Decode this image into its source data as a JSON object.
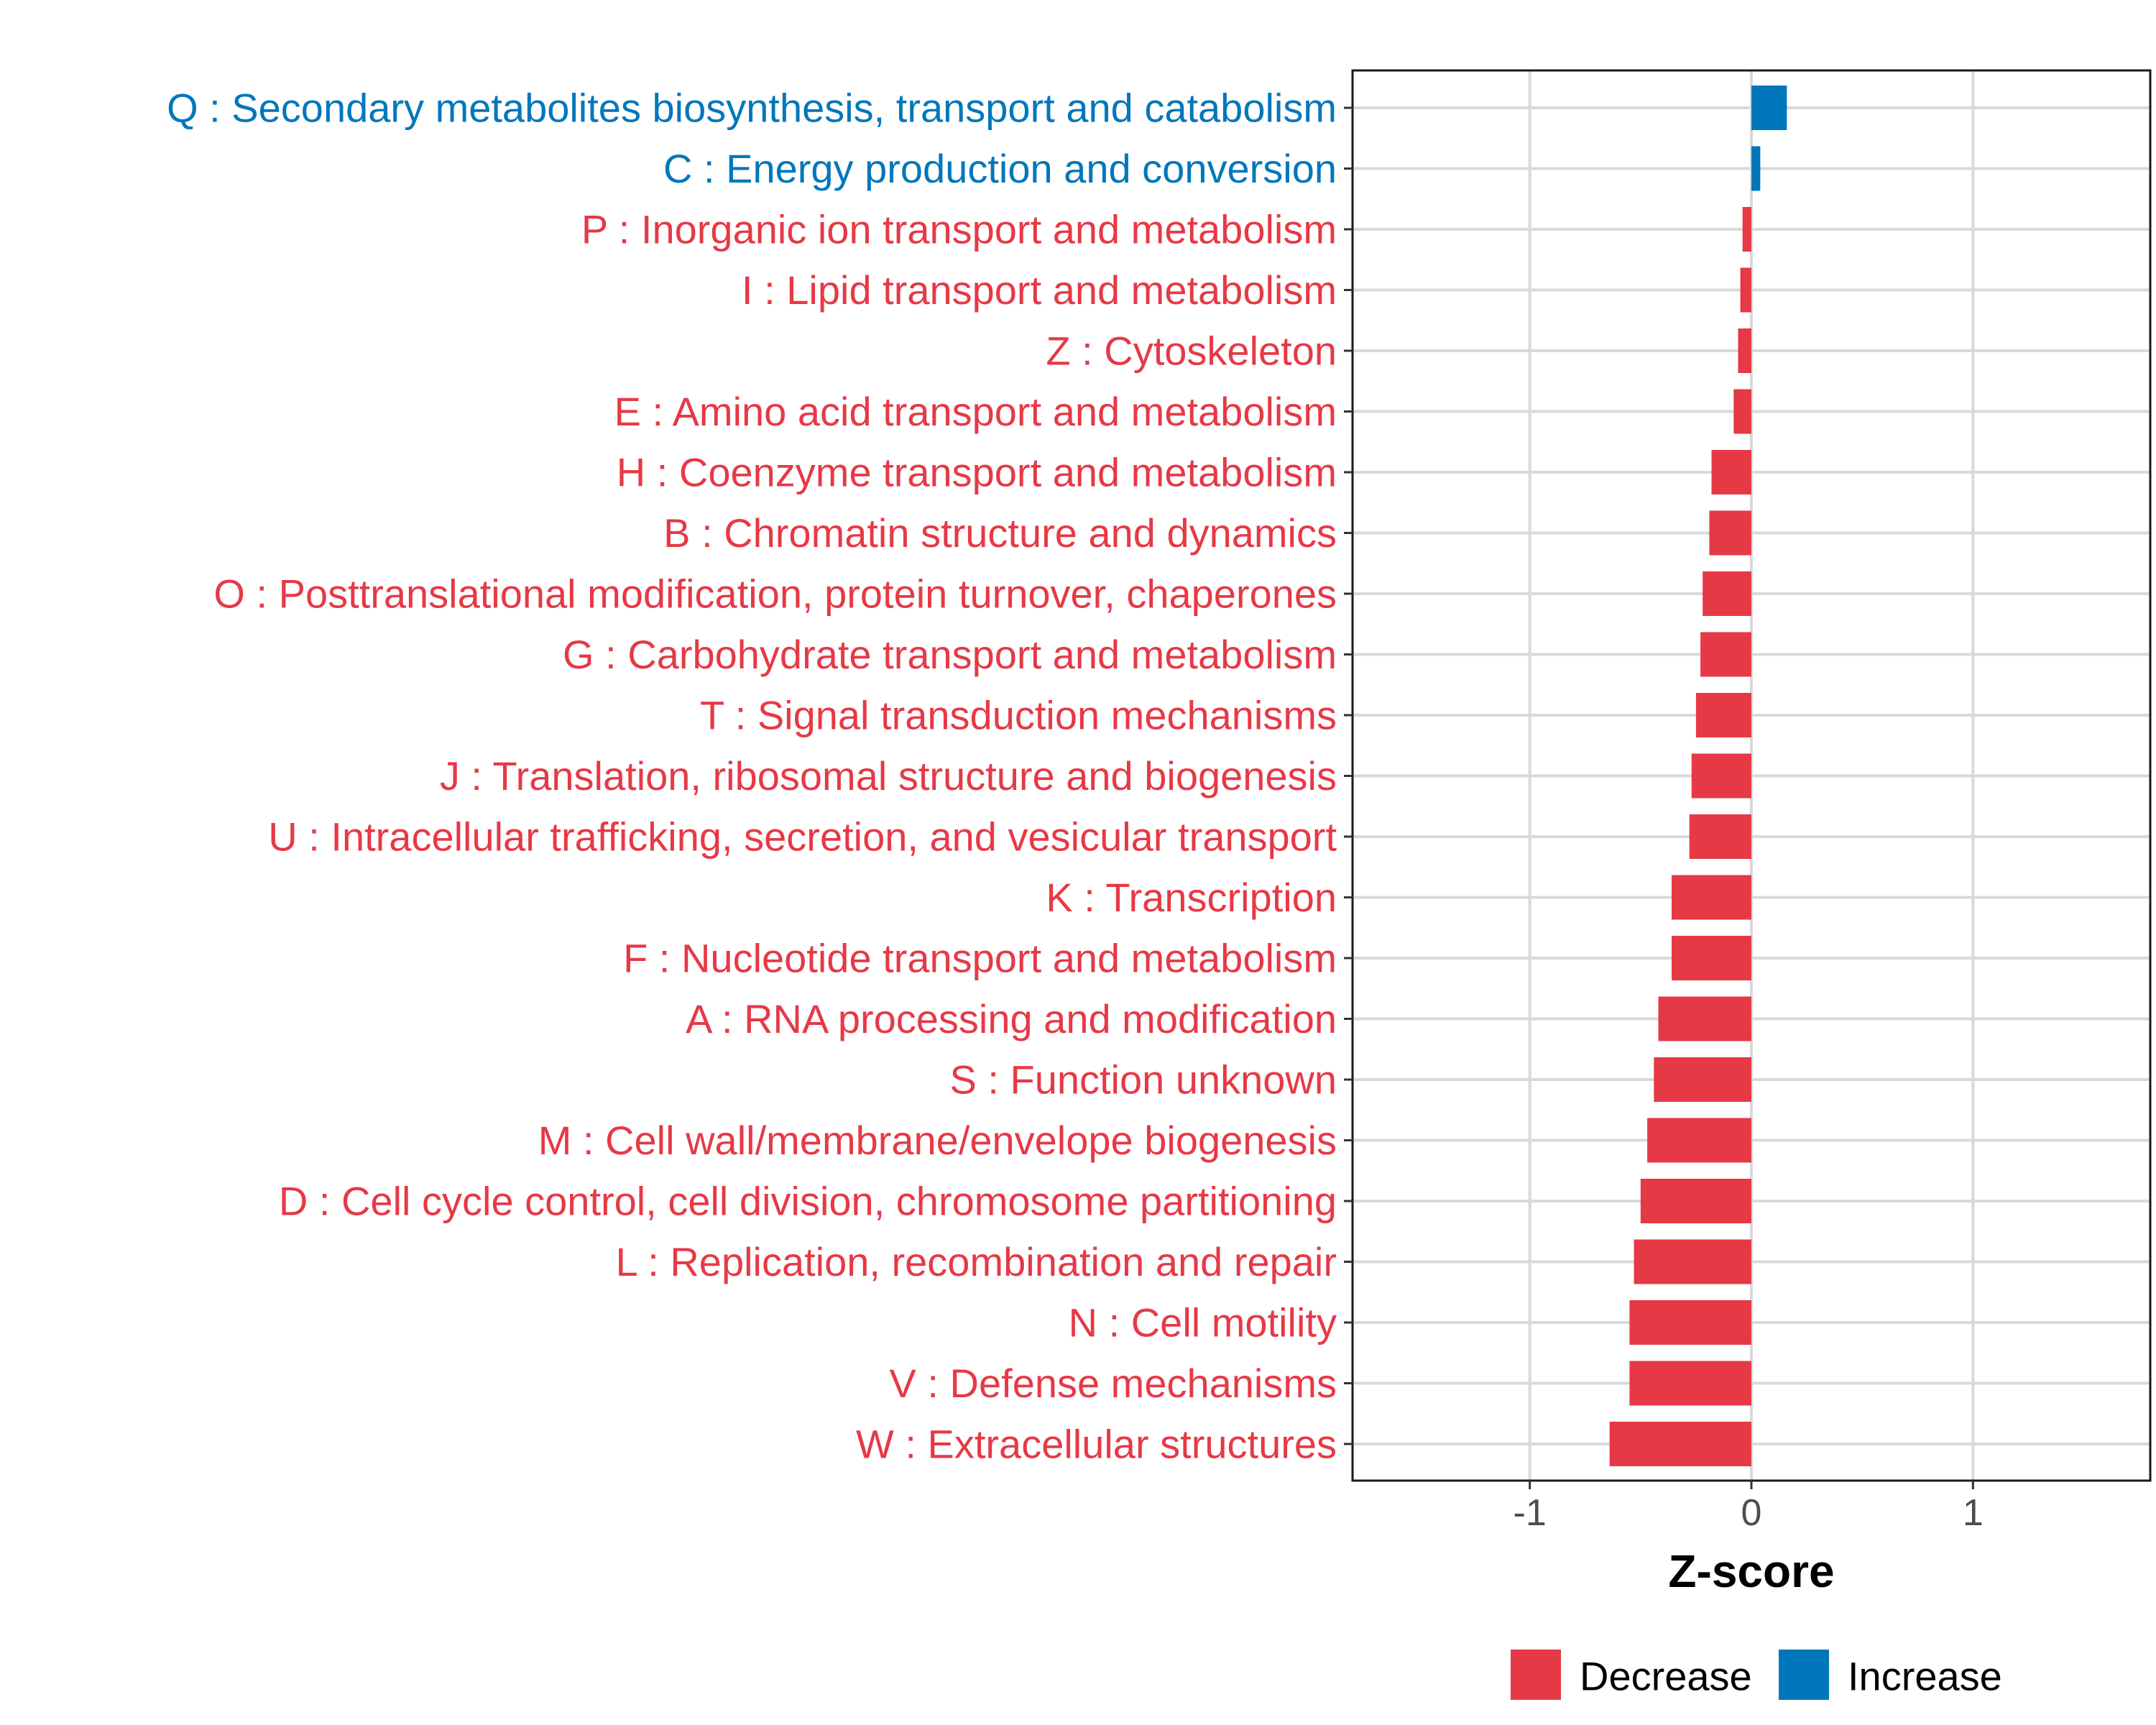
{
  "chart_data": {
    "type": "bar",
    "orientation": "horizontal",
    "xlabel": "Z-score",
    "ylabel": "",
    "xlim": [
      -1.8,
      1.8
    ],
    "xticks": [
      -1,
      0,
      1
    ],
    "xtick_labels": [
      "-1",
      "0",
      "1"
    ],
    "grid": true,
    "legend_position": "bottom",
    "colors": {
      "Decrease": "#e63946",
      "Increase": "#0077bb"
    },
    "legend": [
      {
        "label": "Decrease",
        "color": "#e63946"
      },
      {
        "label": "Increase",
        "color": "#0077bb"
      }
    ],
    "categories": [
      "Q : Secondary metabolites biosynthesis, transport and catabolism",
      "C : Energy production and conversion",
      "P : Inorganic ion transport and metabolism",
      "I : Lipid transport and metabolism",
      "Z : Cytoskeleton",
      "E : Amino acid transport and metabolism",
      "H : Coenzyme transport and metabolism",
      "B : Chromatin structure and dynamics",
      "O : Posttranslational modification, protein turnover, chaperones",
      "G : Carbohydrate transport and metabolism",
      "T : Signal transduction mechanisms",
      "J : Translation, ribosomal structure and biogenesis",
      "U : Intracellular trafficking, secretion, and vesicular transport",
      "K : Transcription",
      "F : Nucleotide transport and metabolism",
      "A : RNA processing and modification",
      "S : Function unknown",
      "M : Cell wall/membrane/envelope biogenesis",
      "D : Cell cycle control, cell division, chromosome partitioning",
      "L : Replication, recombination and repair",
      "N : Cell motility",
      "V : Defense mechanisms",
      "W : Extracellular structures"
    ],
    "values": [
      0.16,
      0.04,
      -0.04,
      -0.05,
      -0.06,
      -0.08,
      -0.18,
      -0.19,
      -0.22,
      -0.23,
      -0.25,
      -0.27,
      -0.28,
      -0.36,
      -0.36,
      -0.42,
      -0.44,
      -0.47,
      -0.5,
      -0.53,
      -0.55,
      -0.55,
      -0.64
    ],
    "groups": [
      "Increase",
      "Increase",
      "Decrease",
      "Decrease",
      "Decrease",
      "Decrease",
      "Decrease",
      "Decrease",
      "Decrease",
      "Decrease",
      "Decrease",
      "Decrease",
      "Decrease",
      "Decrease",
      "Decrease",
      "Decrease",
      "Decrease",
      "Decrease",
      "Decrease",
      "Decrease",
      "Decrease",
      "Decrease",
      "Decrease"
    ]
  }
}
